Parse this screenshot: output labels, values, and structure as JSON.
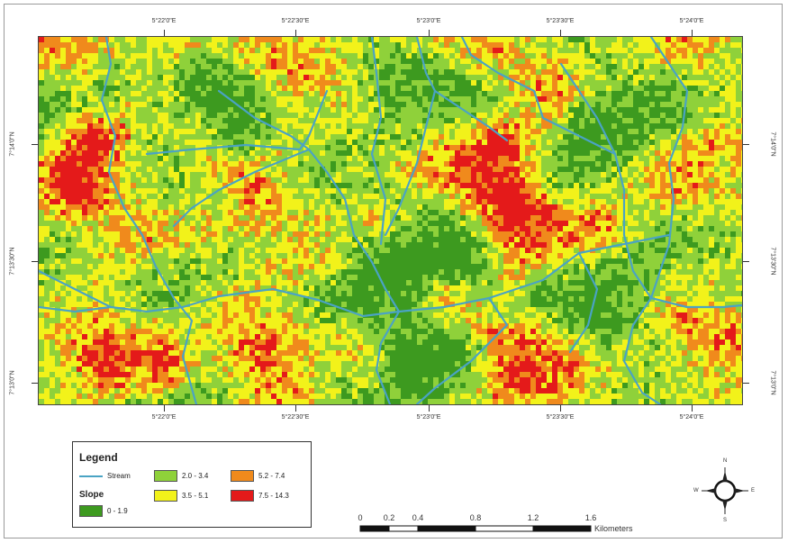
{
  "map": {
    "top_ticks": [
      "5°22'0\"E",
      "5°22'30\"E",
      "5°23'0\"E",
      "5°23'30\"E",
      "5°24'0\"E"
    ],
    "bottom_ticks": [
      "5°22'0\"E",
      "5°22'30\"E",
      "5°23'0\"E",
      "5°23'30\"E",
      "5°24'0\"E"
    ],
    "left_ticks": [
      "7°14'0\"N",
      "7°13'30\"N",
      "7°13'0\"N"
    ],
    "right_ticks": [
      "7°14'0\"N",
      "7°13'30\"N",
      "7°13'0\"N"
    ]
  },
  "legend": {
    "title": "Legend",
    "stream_label": "Stream",
    "slope_label": "Slope",
    "classes": [
      {
        "range": "0 - 1.9",
        "color": "#3d9a1f"
      },
      {
        "range": "2.0 - 3.4",
        "color": "#8fd13a"
      },
      {
        "range": "3.5 - 5.1",
        "color": "#f2f21a"
      },
      {
        "range": "5.2 - 7.4",
        "color": "#f08a1c"
      },
      {
        "range": "7.5 - 14.3",
        "color": "#e41a1a"
      }
    ],
    "stream_color": "#4aa3c4"
  },
  "scale": {
    "labels": [
      "0",
      "0.2",
      "0.4",
      "0.8",
      "1.2",
      "1.6"
    ],
    "values": [
      0,
      0.2,
      0.4,
      0.8,
      1.2,
      1.6
    ],
    "unit": "Kilometers"
  },
  "north_arrow": {
    "n": "N",
    "s": "S",
    "e": "E",
    "w": "W",
    "icon": "compass-rose-icon"
  }
}
